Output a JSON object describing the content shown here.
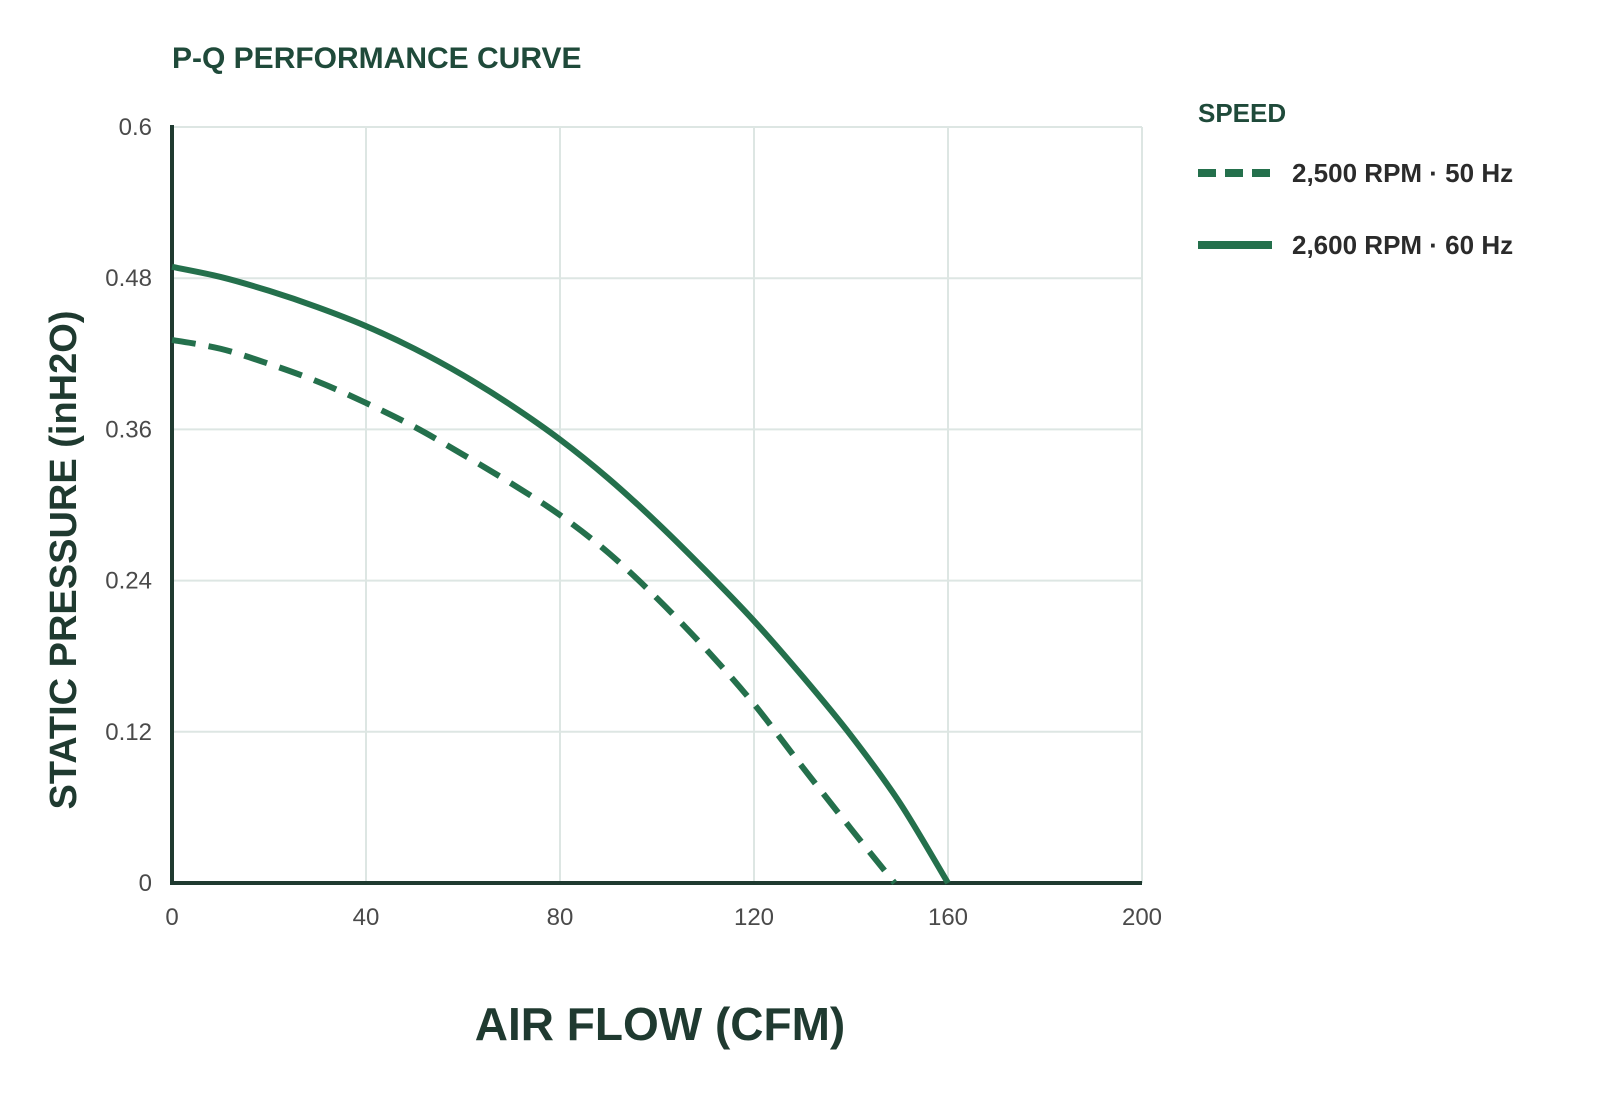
{
  "colors": {
    "series": "#24704c",
    "title": "#1f4a3a",
    "axis": "#1f3a30",
    "grid": "#dde6e3"
  },
  "chart_data": {
    "type": "line",
    "title": "P-Q PERFORMANCE CURVE",
    "xlabel": "AIR FLOW (CFM)",
    "ylabel": "STATIC PRESSURE (inH2O)",
    "xlim": [
      0,
      200
    ],
    "ylim": [
      0,
      0.6
    ],
    "x_ticks": [
      "0",
      "40",
      "80",
      "120",
      "160",
      "200"
    ],
    "y_ticks": [
      "0",
      "0.12",
      "0.24",
      "0.36",
      "0.48",
      "0.6"
    ],
    "grid": true,
    "legend": {
      "title": "SPEED",
      "position": "right"
    },
    "series": [
      {
        "name": "2,500 RPM · 50 Hz",
        "style": "dashed",
        "x": [
          0,
          10,
          20,
          30,
          40,
          50,
          60,
          70,
          80,
          90,
          100,
          110,
          120,
          130,
          140,
          149
        ],
        "y": [
          0.431,
          0.424,
          0.412,
          0.398,
          0.381,
          0.362,
          0.34,
          0.317,
          0.292,
          0.262,
          0.226,
          0.186,
          0.142,
          0.092,
          0.043,
          0
        ]
      },
      {
        "name": "2,600 RPM · 60 Hz",
        "style": "solid",
        "x": [
          0,
          10,
          20,
          30,
          40,
          50,
          60,
          70,
          80,
          90,
          100,
          110,
          120,
          130,
          140,
          150,
          160
        ],
        "y": [
          0.489,
          0.481,
          0.47,
          0.457,
          0.442,
          0.424,
          0.403,
          0.379,
          0.352,
          0.321,
          0.286,
          0.248,
          0.208,
          0.164,
          0.117,
          0.064,
          0
        ]
      }
    ]
  }
}
